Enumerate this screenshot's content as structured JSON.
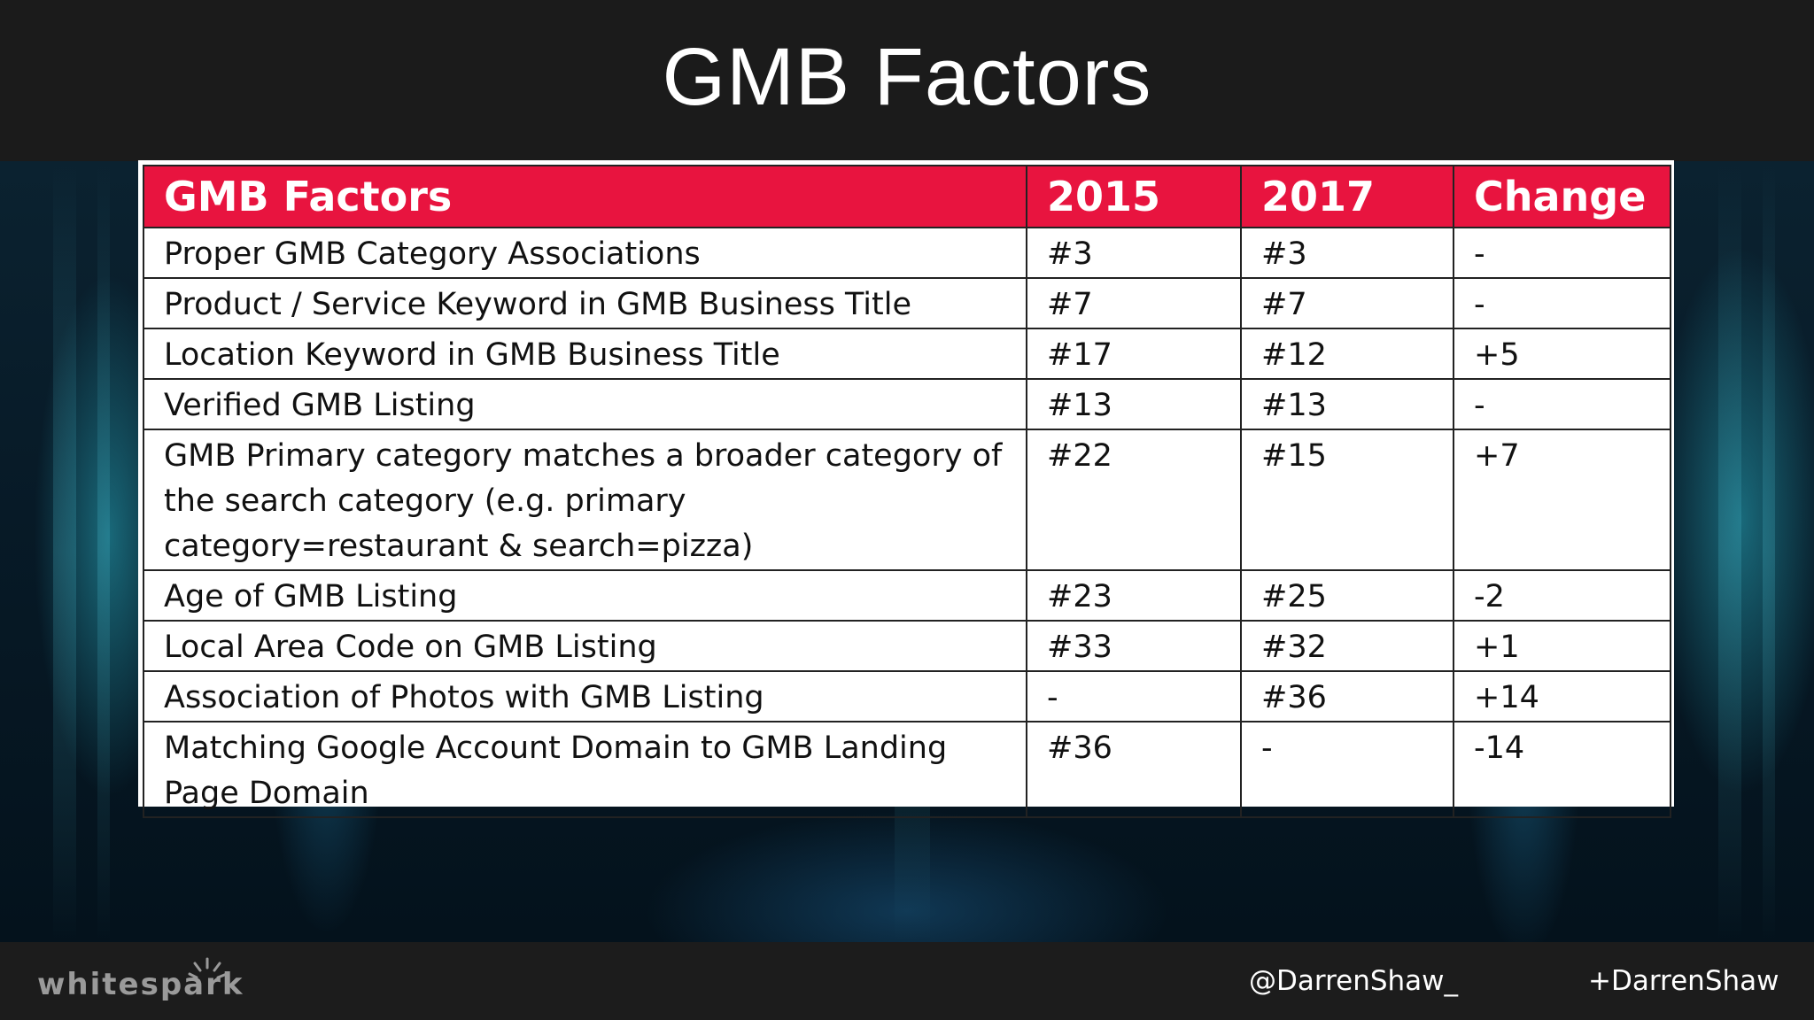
{
  "slide": {
    "title": "GMB Factors"
  },
  "table": {
    "headers": [
      "GMB Factors",
      "2015",
      "2017",
      "Change"
    ],
    "rows": [
      {
        "factor": "Proper GMB Category Associations",
        "y2015": "#3",
        "y2017": "#3",
        "change": "-"
      },
      {
        "factor": "Product / Service Keyword in GMB Business Title",
        "y2015": "#7",
        "y2017": "#7",
        "change": "-"
      },
      {
        "factor": "Location Keyword in GMB Business Title",
        "y2015": "#17",
        "y2017": "#12",
        "change": "+5"
      },
      {
        "factor": "Verified GMB Listing",
        "y2015": "#13",
        "y2017": "#13",
        "change": "-"
      },
      {
        "factor": "GMB Primary category matches a broader category of the search category (e.g. primary category=restaurant & search=pizza)",
        "y2015": "#22",
        "y2017": "#15",
        "change": "+7"
      },
      {
        "factor": "Age of GMB Listing",
        "y2015": "#23",
        "y2017": "#25",
        "change": "-2"
      },
      {
        "factor": "Local Area Code on GMB Listing",
        "y2015": "#33",
        "y2017": "#32",
        "change": "+1"
      },
      {
        "factor": "Association of Photos with GMB Listing",
        "y2015": "-",
        "y2017": "#36",
        "change": "+14"
      },
      {
        "factor": "Matching Google Account Domain to GMB Landing Page Domain",
        "y2015": "#36",
        "y2017": "-",
        "change": "-14"
      }
    ]
  },
  "footer": {
    "logo_text": "whitespark",
    "twitter_handle": "@DarrenShaw_",
    "gplus_handle": "+DarrenShaw"
  },
  "colors": {
    "header_bg": "#e8143f",
    "title_bar_bg": "#1b1b1b",
    "footer_bg": "#1c1c1c"
  },
  "icons": {
    "logo_mark": "spark-burst-icon"
  }
}
